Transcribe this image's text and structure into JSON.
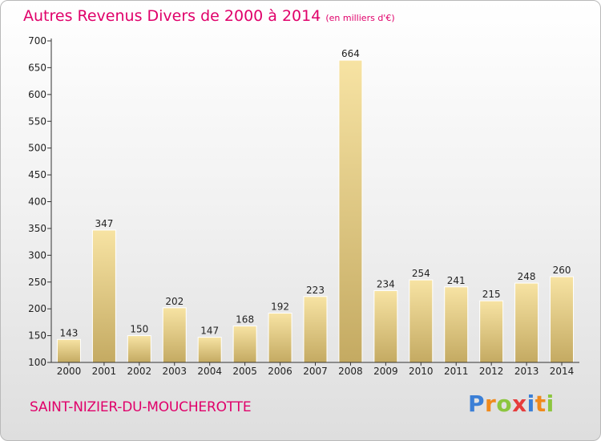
{
  "title": "Autres Revenus Divers de 2000 à 2014",
  "subtitle": "(en milliers d'€)",
  "commune": "SAINT-NIZIER-DU-MOUCHEROTTE",
  "logo": {
    "letters": [
      "P",
      "r",
      "o",
      "x",
      "i",
      "t",
      "i"
    ],
    "colors": [
      "#3b7fd6",
      "#f08a1c",
      "#8cc63f",
      "#e63c3c",
      "#3b7fd6",
      "#f08a1c",
      "#8cc63f"
    ]
  },
  "colors": {
    "title": "#e0006a",
    "bar_light": "#f7e3a3",
    "bar_dark": "#c4aa62",
    "axis": "#333333"
  },
  "chart_data": {
    "type": "bar",
    "categories": [
      "2000",
      "2001",
      "2002",
      "2003",
      "2004",
      "2005",
      "2006",
      "2007",
      "2008",
      "2009",
      "2010",
      "2011",
      "2012",
      "2013",
      "2014"
    ],
    "values": [
      143,
      347,
      150,
      202,
      147,
      168,
      192,
      223,
      664,
      234,
      254,
      241,
      215,
      248,
      260
    ],
    "yticks": [
      100,
      150,
      200,
      250,
      300,
      350,
      400,
      450,
      500,
      550,
      600,
      650,
      700
    ],
    "ylim": [
      100,
      700
    ],
    "grid": false,
    "legend": "none"
  }
}
